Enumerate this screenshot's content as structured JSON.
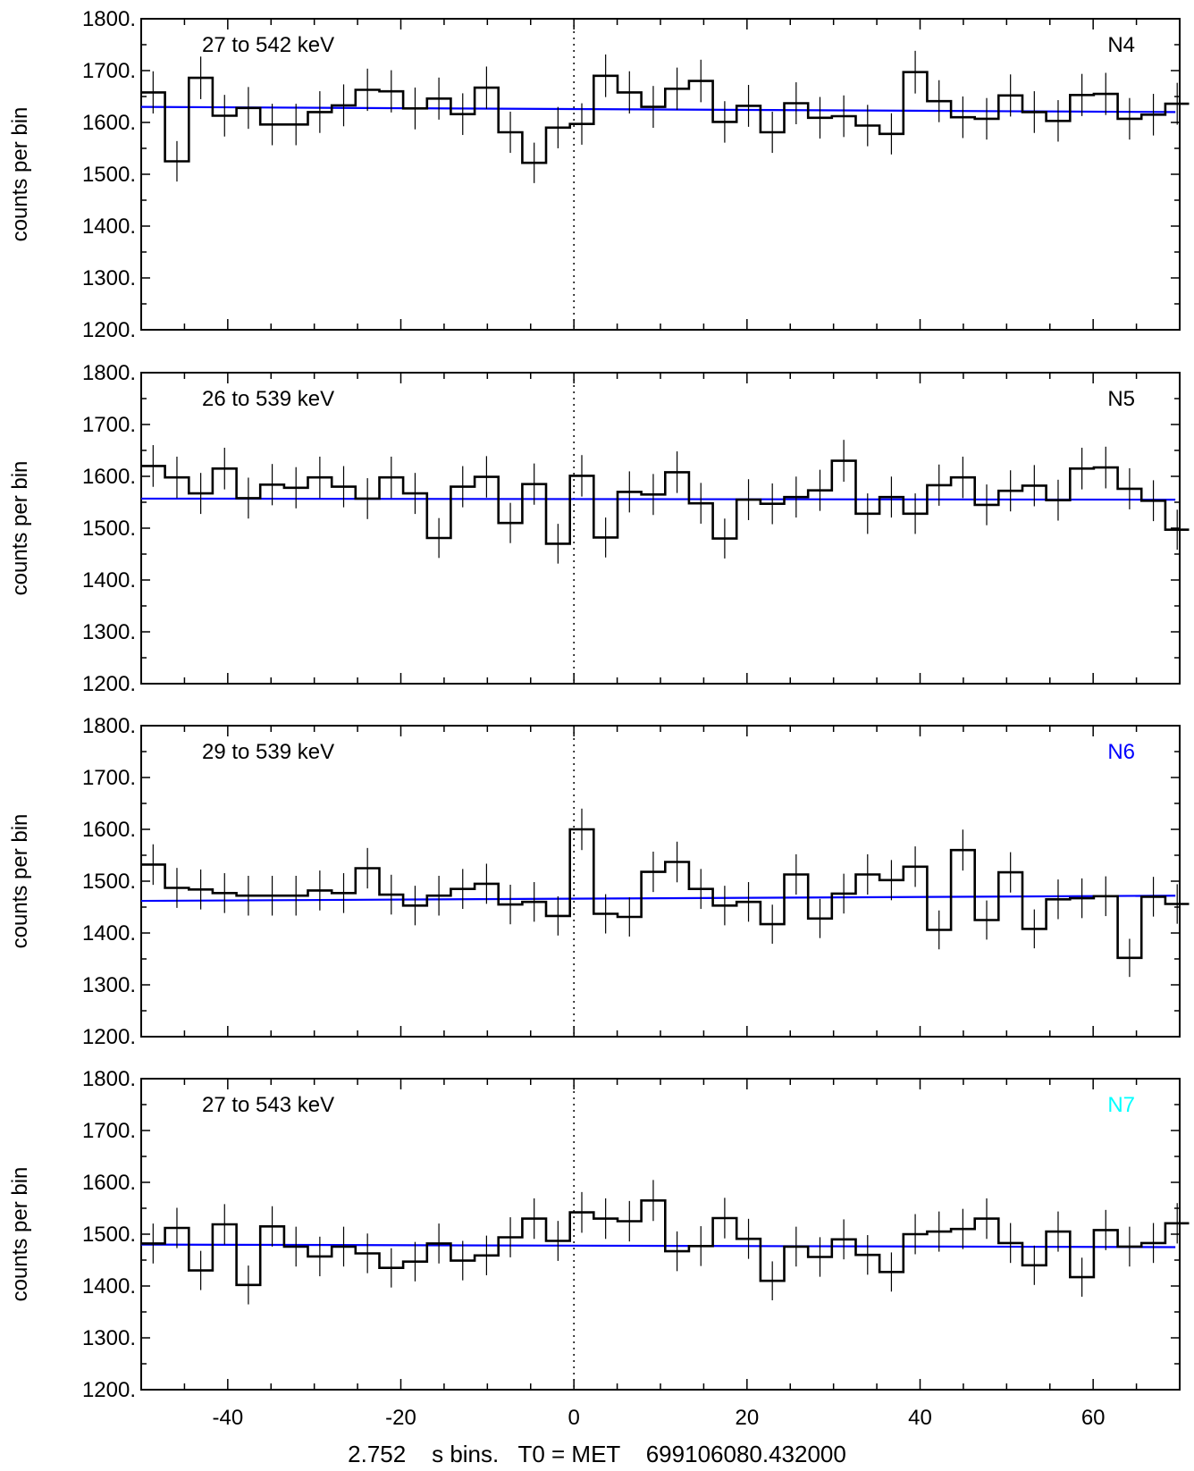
{
  "chart_data": [
    {
      "type": "line",
      "detector": "N4",
      "detector_color": "#000000",
      "energy_range": "27 to 542 keV",
      "ylabel": "counts per bin",
      "xlim": [
        -50,
        70
      ],
      "ylim": [
        1200,
        1800
      ],
      "yticks": [
        "1200.",
        "1300.",
        "1400.",
        "1500.",
        "1600.",
        "1700.",
        "1800."
      ],
      "x_start": -50.0,
      "bin_width": 2.752,
      "values": [
        1658,
        1525,
        1686,
        1613,
        1628,
        1596,
        1596,
        1620,
        1633,
        1663,
        1660,
        1627,
        1646,
        1616,
        1667,
        1581,
        1522,
        1590,
        1597,
        1690,
        1658,
        1630,
        1665,
        1680,
        1601,
        1632,
        1581,
        1637,
        1609,
        1612,
        1594,
        1578,
        1697,
        1641,
        1610,
        1607,
        1652,
        1620,
        1603,
        1653,
        1655,
        1607,
        1615,
        1636
      ],
      "background_line": [
        [
          -50,
          1630
        ],
        [
          69.5,
          1620
        ]
      ],
      "background_color": "#0000ff"
    },
    {
      "type": "line",
      "detector": "N5",
      "detector_color": "#000000",
      "energy_range": "26 to 539 keV",
      "ylabel": "counts per bin",
      "xlim": [
        -50,
        70
      ],
      "ylim": [
        1200,
        1800
      ],
      "yticks": [
        "1200.",
        "1300.",
        "1400.",
        "1500.",
        "1600.",
        "1700.",
        "1800."
      ],
      "x_start": -50.0,
      "bin_width": 2.752,
      "values": [
        1620,
        1598,
        1567,
        1615,
        1558,
        1584,
        1578,
        1598,
        1580,
        1557,
        1598,
        1567,
        1481,
        1580,
        1599,
        1510,
        1585,
        1470,
        1601,
        1482,
        1570,
        1565,
        1608,
        1548,
        1480,
        1555,
        1547,
        1560,
        1573,
        1630,
        1528,
        1560,
        1528,
        1583,
        1598,
        1545,
        1572,
        1582,
        1554,
        1615,
        1617,
        1576,
        1553,
        1497
      ],
      "background_line": [
        [
          -50,
          1557
        ],
        [
          69.5,
          1555
        ]
      ],
      "background_color": "#0000ff"
    },
    {
      "type": "line",
      "detector": "N6",
      "detector_color": "#0000ff",
      "energy_range": "29 to 539 keV",
      "ylabel": "counts per bin",
      "xlim": [
        -50,
        70
      ],
      "ylim": [
        1200,
        1800
      ],
      "yticks": [
        "1200.",
        "1300.",
        "1400.",
        "1500.",
        "1600.",
        "1700.",
        "1800."
      ],
      "x_start": -50.0,
      "bin_width": 2.752,
      "values": [
        1532,
        1487,
        1484,
        1477,
        1472,
        1472,
        1472,
        1482,
        1477,
        1525,
        1474,
        1453,
        1472,
        1485,
        1495,
        1455,
        1460,
        1433,
        1600,
        1437,
        1431,
        1518,
        1537,
        1485,
        1453,
        1460,
        1417,
        1513,
        1428,
        1476,
        1513,
        1502,
        1528,
        1406,
        1560,
        1425,
        1517,
        1408,
        1465,
        1467,
        1471,
        1352,
        1470,
        1456
      ],
      "background_line": [
        [
          -50,
          1462
        ],
        [
          69.5,
          1472
        ]
      ],
      "background_color": "#0000ff"
    },
    {
      "type": "line",
      "detector": "N7",
      "detector_color": "#00ffff",
      "energy_range": "27 to 543 keV",
      "ylabel": "counts per bin",
      "xlim": [
        -50,
        70
      ],
      "ylim": [
        1200,
        1800
      ],
      "yticks": [
        "1200.",
        "1300.",
        "1400.",
        "1500.",
        "1600.",
        "1700.",
        "1800."
      ],
      "x_start": -50.0,
      "bin_width": 2.752,
      "values": [
        1482,
        1512,
        1430,
        1519,
        1402,
        1515,
        1476,
        1457,
        1476,
        1463,
        1435,
        1447,
        1482,
        1449,
        1459,
        1494,
        1530,
        1487,
        1542,
        1530,
        1525,
        1565,
        1467,
        1477,
        1531,
        1491,
        1410,
        1476,
        1456,
        1490,
        1460,
        1427,
        1500,
        1505,
        1510,
        1530,
        1483,
        1440,
        1505,
        1417,
        1508,
        1476,
        1483,
        1521
      ],
      "background_line": [
        [
          -50,
          1480
        ],
        [
          69.5,
          1475
        ]
      ],
      "background_color": "#0000ff"
    }
  ],
  "x_axis": {
    "ticks": [
      -40,
      -20,
      0,
      20,
      40,
      60
    ],
    "tick_labels": [
      "-40",
      "-20",
      "0",
      "20",
      "40",
      "60"
    ],
    "caption": "2.752    s bins.   T0 = MET    699106080.432000"
  }
}
